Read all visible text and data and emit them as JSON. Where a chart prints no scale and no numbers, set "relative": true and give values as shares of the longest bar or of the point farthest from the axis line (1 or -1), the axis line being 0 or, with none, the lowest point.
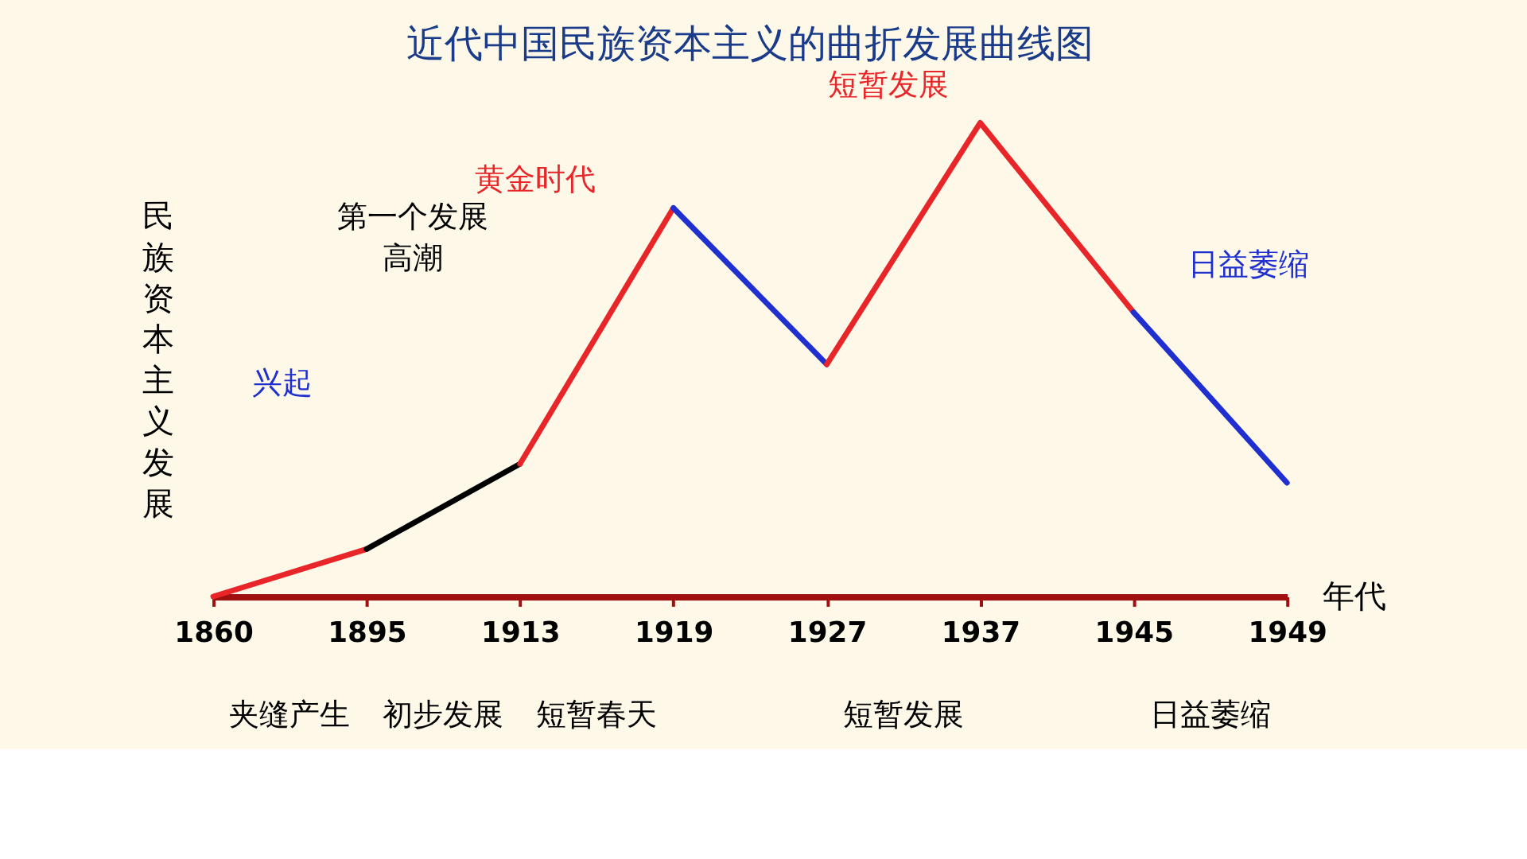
{
  "chart_data": {
    "type": "line",
    "relative": true,
    "title": "近代中国民族资本主义的曲折发展曲线图",
    "ylabel": "民族资本主义发展",
    "xlabel": "年代",
    "categories": [
      "1860",
      "1895",
      "1913",
      "1919",
      "1927",
      "1937",
      "1945",
      "1949"
    ],
    "series": [
      {
        "color": "#e8262a",
        "values": [
          0,
          0.1,
          null,
          null,
          null,
          null,
          null,
          null
        ]
      },
      {
        "color": "#000000",
        "values": [
          null,
          0.1,
          0.28,
          null,
          null,
          null,
          null,
          null
        ]
      },
      {
        "color": "#e8262a",
        "values": [
          null,
          null,
          0.28,
          0.82,
          null,
          null,
          null,
          null
        ]
      },
      {
        "color": "#1f2fd0",
        "values": [
          null,
          null,
          null,
          0.82,
          0.49,
          null,
          null,
          null
        ]
      },
      {
        "color": "#e8262a",
        "values": [
          null,
          null,
          null,
          null,
          0.49,
          1,
          0.6,
          null
        ]
      },
      {
        "color": "#1f2fd0",
        "values": [
          null,
          null,
          null,
          null,
          null,
          null,
          0.6,
          0.24
        ]
      }
    ],
    "annotations": [
      "兴起",
      "第一个发展",
      "高潮",
      "黄金时代",
      "短暂发展",
      "日益萎缩",
      "夹缝产生",
      "初步发展",
      "短暂春天",
      "短暂发展",
      "日益萎缩"
    ],
    "grid": false,
    "marker": "none",
    "line_style": "solid"
  }
}
